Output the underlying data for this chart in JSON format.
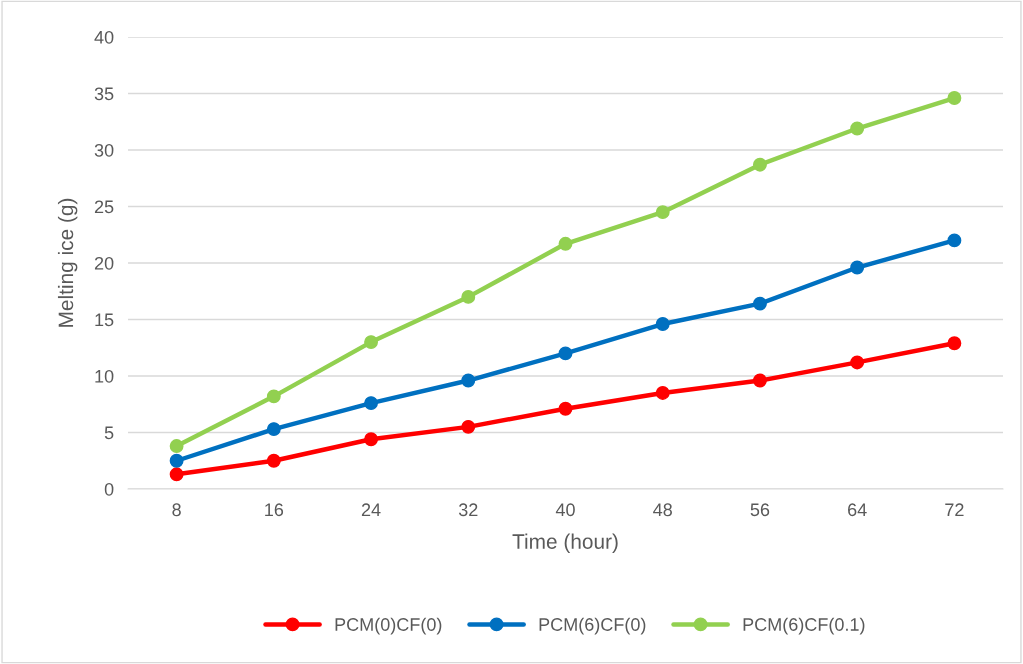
{
  "chart_data": {
    "type": "line",
    "xlabel": "Time (hour)",
    "ylabel": "Melting ice (g)",
    "categories": [
      "8",
      "16",
      "24",
      "32",
      "40",
      "48",
      "56",
      "64",
      "72"
    ],
    "series": [
      {
        "name": "PCM(0)CF(0)",
        "color": "#ff0000",
        "values": [
          1.3,
          2.5,
          4.4,
          5.5,
          7.1,
          8.5,
          9.6,
          11.2,
          12.9
        ]
      },
      {
        "name": "PCM(6)CF(0)",
        "color": "#0070c0",
        "values": [
          2.5,
          5.3,
          7.6,
          9.6,
          12.0,
          14.6,
          16.4,
          19.6,
          22.0
        ]
      },
      {
        "name": "PCM(6)CF(0.1)",
        "color": "#92d050",
        "values": [
          3.8,
          8.2,
          13.0,
          17.0,
          21.7,
          24.5,
          28.7,
          31.9,
          34.6
        ]
      }
    ],
    "ylim": [
      0,
      40
    ],
    "yticks": [
      0,
      5,
      10,
      15,
      20,
      25,
      30,
      35,
      40
    ],
    "grid": "y",
    "legend": "bottom",
    "marker": "circle",
    "line_style": "solid"
  }
}
